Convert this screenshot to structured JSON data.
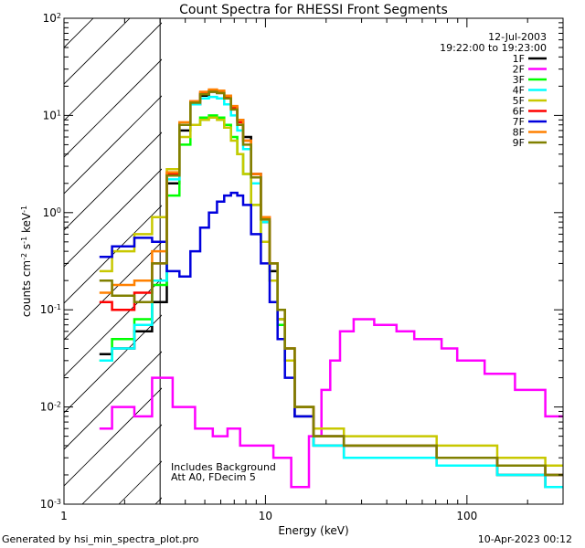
{
  "chart_data": {
    "type": "line",
    "title": "Count Spectra for RHESSI Front Segments",
    "xlabel": "Energy (keV)",
    "ylabel_parts": {
      "base": "counts cm",
      "exp1": "-2",
      "mid1": " s",
      "exp2": "-1",
      "mid2": " keV",
      "exp3": "-1"
    },
    "x_scale": "log",
    "y_scale": "log",
    "xlim": [
      1,
      300
    ],
    "ylim": [
      0.001,
      100
    ],
    "x_ticks": [
      {
        "value": 1,
        "label": "1"
      },
      {
        "value": 10,
        "label": "10"
      },
      {
        "value": 100,
        "label": "100"
      }
    ],
    "y_ticks": [
      {
        "value": 0.001,
        "base": "10",
        "exp": "-3"
      },
      {
        "value": 0.01,
        "base": "10",
        "exp": "-2"
      },
      {
        "value": 0.1,
        "base": "10",
        "exp": "-1"
      },
      {
        "value": 1,
        "base": "10",
        "exp": "0"
      },
      {
        "value": 10,
        "base": "10",
        "exp": "1"
      },
      {
        "value": 100,
        "base": "10",
        "exp": "2"
      }
    ],
    "date": "12-Jul-2003",
    "time_range": "19:22:00 to 19:23:00",
    "note_line1": "Includes Background",
    "note_line2": "Att A0, FDecim 5",
    "attenuator_cutoff_keV": 3,
    "legend_position": "top-right",
    "series": [
      {
        "name": "1F",
        "color": "#000000",
        "x": [
          1.5,
          2.0,
          2.5,
          3.0,
          3.5,
          4.0,
          4.5,
          5.0,
          5.5,
          6.0,
          6.5,
          7.0,
          7.5,
          8.0,
          9.0,
          10.0,
          11.0,
          12.0,
          13.0,
          15.0,
          20.0,
          30.0,
          50.0,
          100.0,
          200.0,
          300.0
        ],
        "y": [
          0.035,
          0.04,
          0.06,
          0.12,
          2.0,
          7.0,
          13.0,
          16.0,
          17.5,
          17.0,
          15.0,
          12.0,
          9.0,
          6.0,
          2.5,
          0.8,
          0.25,
          0.08,
          0.03,
          0.008,
          0.004,
          0.003,
          0.003,
          0.0025,
          0.002,
          0.0015
        ]
      },
      {
        "name": "2F",
        "color": "#ff00ff",
        "x": [
          1.5,
          2.0,
          2.5,
          3.0,
          4.0,
          5.0,
          6.0,
          7.0,
          8.0,
          10.0,
          12.0,
          15.0,
          18.0,
          20.0,
          22.0,
          25.0,
          30.0,
          40.0,
          50.0,
          60.0,
          70.0,
          80.0,
          100.0,
          150.0,
          200.0,
          300.0
        ],
        "y": [
          0.006,
          0.01,
          0.008,
          0.02,
          0.01,
          0.006,
          0.005,
          0.006,
          0.004,
          0.004,
          0.003,
          0.0015,
          0.005,
          0.015,
          0.03,
          0.06,
          0.08,
          0.07,
          0.06,
          0.05,
          0.05,
          0.04,
          0.03,
          0.022,
          0.015,
          0.008
        ]
      },
      {
        "name": "3F",
        "color": "#00ff00",
        "x": [
          1.5,
          2.0,
          2.5,
          3.0,
          3.5,
          4.0,
          4.5,
          5.0,
          5.5,
          6.0,
          6.5,
          7.0,
          7.5,
          8.0,
          9.0,
          10.0,
          11.0,
          12.0,
          13.0,
          15.0,
          20.0,
          30.0,
          50.0,
          100.0,
          200.0,
          300.0
        ],
        "y": [
          0.03,
          0.05,
          0.08,
          0.18,
          1.5,
          5.0,
          8.0,
          9.5,
          10.0,
          9.5,
          8.0,
          6.0,
          4.0,
          2.5,
          1.2,
          0.5,
          0.2,
          0.07,
          0.03,
          0.01,
          0.005,
          0.004,
          0.004,
          0.003,
          0.0025,
          0.002
        ]
      },
      {
        "name": "4F",
        "color": "#00ffff",
        "x": [
          1.5,
          2.0,
          2.5,
          3.0,
          3.5,
          4.0,
          4.5,
          5.0,
          5.5,
          6.0,
          6.5,
          7.0,
          7.5,
          8.0,
          9.0,
          10.0,
          11.0,
          12.0,
          13.0,
          15.0,
          20.0,
          30.0,
          50.0,
          100.0,
          200.0,
          300.0
        ],
        "y": [
          0.03,
          0.04,
          0.07,
          0.2,
          2.2,
          8.0,
          13.0,
          15.0,
          15.5,
          15.0,
          13.0,
          10.0,
          7.0,
          4.5,
          2.0,
          0.8,
          0.3,
          0.1,
          0.04,
          0.01,
          0.004,
          0.003,
          0.003,
          0.0025,
          0.002,
          0.0015
        ]
      },
      {
        "name": "5F",
        "color": "#c8c800",
        "x": [
          1.5,
          2.0,
          2.5,
          3.0,
          3.5,
          4.0,
          4.5,
          5.0,
          5.5,
          6.0,
          6.5,
          7.0,
          7.5,
          8.0,
          9.0,
          10.0,
          11.0,
          12.0,
          13.0,
          15.0,
          20.0,
          30.0,
          50.0,
          100.0,
          200.0,
          300.0
        ],
        "y": [
          0.25,
          0.4,
          0.6,
          0.9,
          2.8,
          6.0,
          8.0,
          9.0,
          9.5,
          9.0,
          7.5,
          5.5,
          4.0,
          2.5,
          1.2,
          0.5,
          0.2,
          0.08,
          0.03,
          0.01,
          0.006,
          0.005,
          0.005,
          0.004,
          0.003,
          0.0025
        ]
      },
      {
        "name": "6F",
        "color": "#ff0000",
        "x": [
          1.5,
          2.0,
          2.5,
          3.0,
          3.5,
          4.0,
          4.5,
          5.0,
          5.5,
          6.0,
          6.5,
          7.0,
          7.5,
          8.0,
          9.0,
          10.0,
          11.0,
          12.0,
          13.0,
          15.0,
          20.0,
          30.0,
          50.0,
          100.0,
          200.0,
          300.0
        ],
        "y": [
          0.12,
          0.1,
          0.15,
          0.3,
          2.5,
          8.0,
          14.0,
          17.0,
          18.0,
          17.5,
          15.5,
          12.0,
          8.5,
          5.5,
          2.5,
          0.9,
          0.3,
          0.1,
          0.04,
          0.01,
          0.005,
          0.004,
          0.004,
          0.003,
          0.0025,
          0.002
        ]
      },
      {
        "name": "7F",
        "color": "#0000dd",
        "x": [
          1.5,
          2.0,
          2.5,
          3.0,
          3.5,
          4.0,
          4.5,
          5.0,
          5.5,
          6.0,
          6.5,
          7.0,
          7.5,
          8.0,
          9.0,
          10.0,
          11.0,
          12.0,
          13.0,
          15.0,
          20.0,
          30.0,
          50.0,
          100.0,
          200.0,
          300.0
        ],
        "y": [
          0.35,
          0.45,
          0.55,
          0.5,
          0.25,
          0.22,
          0.4,
          0.7,
          1.0,
          1.3,
          1.5,
          1.6,
          1.5,
          1.2,
          0.6,
          0.3,
          0.12,
          0.05,
          0.02,
          0.008,
          0.005,
          0.004,
          0.004,
          0.003,
          0.0025,
          0.002
        ]
      },
      {
        "name": "8F",
        "color": "#ff8000",
        "x": [
          1.5,
          2.0,
          2.5,
          3.0,
          3.5,
          4.0,
          4.5,
          5.0,
          5.5,
          6.0,
          6.5,
          7.0,
          7.5,
          8.0,
          9.0,
          10.0,
          11.0,
          12.0,
          13.0,
          15.0,
          20.0,
          30.0,
          50.0,
          100.0,
          200.0,
          300.0
        ],
        "y": [
          0.15,
          0.18,
          0.2,
          0.4,
          2.6,
          8.5,
          14.0,
          17.5,
          18.5,
          18.0,
          16.0,
          12.5,
          9.0,
          5.5,
          2.5,
          0.9,
          0.3,
          0.1,
          0.04,
          0.01,
          0.005,
          0.004,
          0.004,
          0.003,
          0.0025,
          0.002
        ]
      },
      {
        "name": "9F",
        "color": "#808000",
        "x": [
          1.5,
          2.0,
          2.5,
          3.0,
          3.5,
          4.0,
          4.5,
          5.0,
          5.5,
          6.0,
          6.5,
          7.0,
          7.5,
          8.0,
          9.0,
          10.0,
          11.0,
          12.0,
          13.0,
          15.0,
          20.0,
          30.0,
          50.0,
          100.0,
          200.0,
          300.0
        ],
        "y": [
          0.2,
          0.14,
          0.12,
          0.3,
          2.4,
          8.0,
          13.5,
          16.5,
          17.5,
          17.0,
          15.0,
          11.5,
          8.0,
          5.0,
          2.3,
          0.85,
          0.3,
          0.1,
          0.04,
          0.01,
          0.005,
          0.004,
          0.004,
          0.003,
          0.0025,
          0.002
        ]
      }
    ]
  },
  "footer": {
    "generated_by": "Generated by hsi_min_spectra_plot.pro",
    "timestamp": "10-Apr-2023 00:12"
  }
}
